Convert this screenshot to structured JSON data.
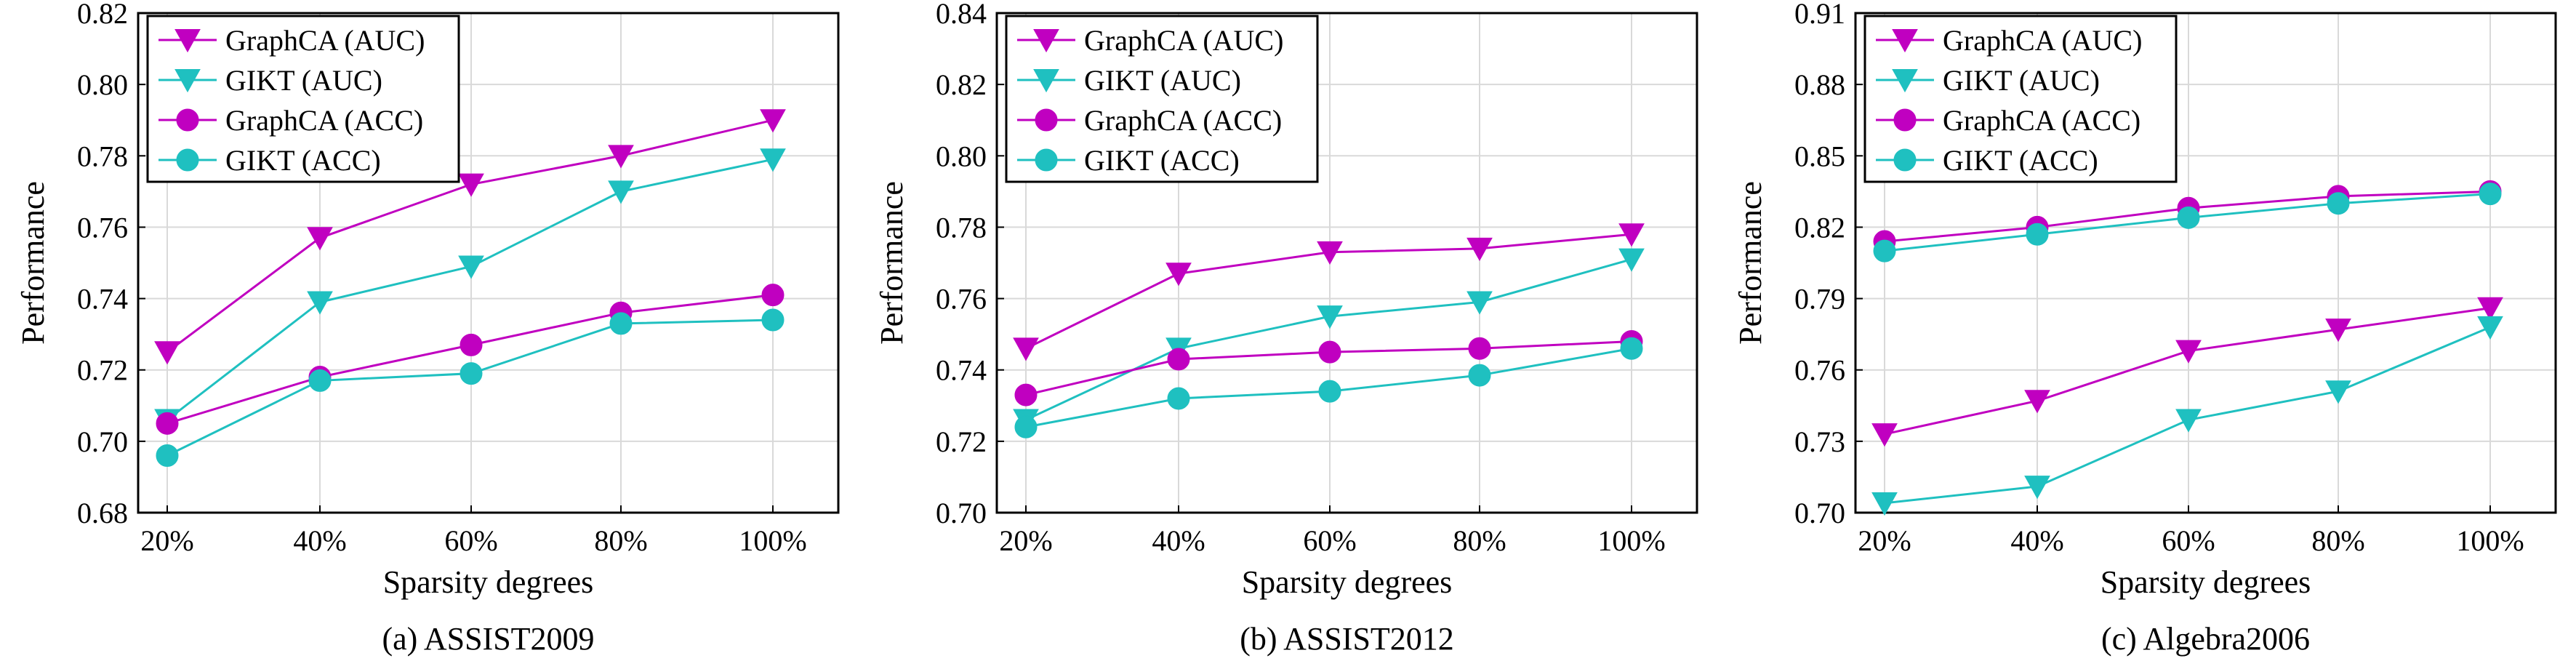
{
  "colors": {
    "graphca": "#c000c0",
    "gikt": "#1fc0c0"
  },
  "chart_data": [
    {
      "type": "line",
      "caption": "(a) ASSIST2009",
      "xlabel": "Sparsity degrees",
      "ylabel": "Performance",
      "categories": [
        "20%",
        "40%",
        "60%",
        "80%",
        "100%"
      ],
      "ylim": [
        0.68,
        0.82
      ],
      "yticks": [
        "0.68",
        "0.70",
        "0.72",
        "0.74",
        "0.76",
        "0.78",
        "0.80",
        "0.82"
      ],
      "grid": true,
      "legend_position": "top-left",
      "series": [
        {
          "name": "GraphCA (AUC)",
          "marker": "triangle-down",
          "color_key": "graphca",
          "values": [
            0.725,
            0.757,
            0.772,
            0.78,
            0.79
          ]
        },
        {
          "name": "GIKT (AUC)",
          "marker": "triangle-down",
          "color_key": "gikt",
          "values": [
            0.706,
            0.739,
            0.749,
            0.77,
            0.779
          ]
        },
        {
          "name": "GraphCA (ACC)",
          "marker": "circle",
          "color_key": "graphca",
          "values": [
            0.705,
            0.718,
            0.727,
            0.736,
            0.741
          ]
        },
        {
          "name": "GIKT (ACC)",
          "marker": "circle",
          "color_key": "gikt",
          "values": [
            0.696,
            0.717,
            0.719,
            0.733,
            0.734
          ]
        }
      ]
    },
    {
      "type": "line",
      "caption": "(b) ASSIST2012",
      "xlabel": "Sparsity degrees",
      "ylabel": "Performance",
      "categories": [
        "20%",
        "40%",
        "60%",
        "80%",
        "100%"
      ],
      "ylim": [
        0.7,
        0.84
      ],
      "yticks": [
        "0.70",
        "0.72",
        "0.74",
        "0.76",
        "0.78",
        "0.80",
        "0.82",
        "0.84"
      ],
      "grid": true,
      "legend_position": "top-left",
      "series": [
        {
          "name": "GraphCA (AUC)",
          "marker": "triangle-down",
          "color_key": "graphca",
          "values": [
            0.746,
            0.767,
            0.773,
            0.774,
            0.778
          ]
        },
        {
          "name": "GIKT (AUC)",
          "marker": "triangle-down",
          "color_key": "gikt",
          "values": [
            0.726,
            0.746,
            0.755,
            0.759,
            0.771
          ]
        },
        {
          "name": "GraphCA (ACC)",
          "marker": "circle",
          "color_key": "graphca",
          "values": [
            0.733,
            0.743,
            0.745,
            0.746,
            0.748
          ]
        },
        {
          "name": "GIKT (ACC)",
          "marker": "circle",
          "color_key": "gikt",
          "values": [
            0.724,
            0.732,
            0.734,
            0.7385,
            0.746
          ]
        }
      ]
    },
    {
      "type": "line",
      "caption": "(c) Algebra2006",
      "xlabel": "Sparsity degrees",
      "ylabel": "Performance",
      "categories": [
        "20%",
        "40%",
        "60%",
        "80%",
        "100%"
      ],
      "ylim": [
        0.7,
        0.91
      ],
      "yticks": [
        "0.70",
        "0.73",
        "0.76",
        "0.79",
        "0.82",
        "0.85",
        "0.88",
        "0.91"
      ],
      "grid": true,
      "legend_position": "top-left",
      "series": [
        {
          "name": "GraphCA (AUC)",
          "marker": "triangle-down",
          "color_key": "graphca",
          "values": [
            0.733,
            0.747,
            0.768,
            0.777,
            0.786
          ]
        },
        {
          "name": "GIKT (AUC)",
          "marker": "triangle-down",
          "color_key": "gikt",
          "values": [
            0.704,
            0.711,
            0.739,
            0.751,
            0.778
          ]
        },
        {
          "name": "GraphCA (ACC)",
          "marker": "circle",
          "color_key": "graphca",
          "values": [
            0.814,
            0.82,
            0.828,
            0.833,
            0.835
          ]
        },
        {
          "name": "GIKT (ACC)",
          "marker": "circle",
          "color_key": "gikt",
          "values": [
            0.81,
            0.817,
            0.824,
            0.83,
            0.834
          ]
        }
      ]
    }
  ]
}
